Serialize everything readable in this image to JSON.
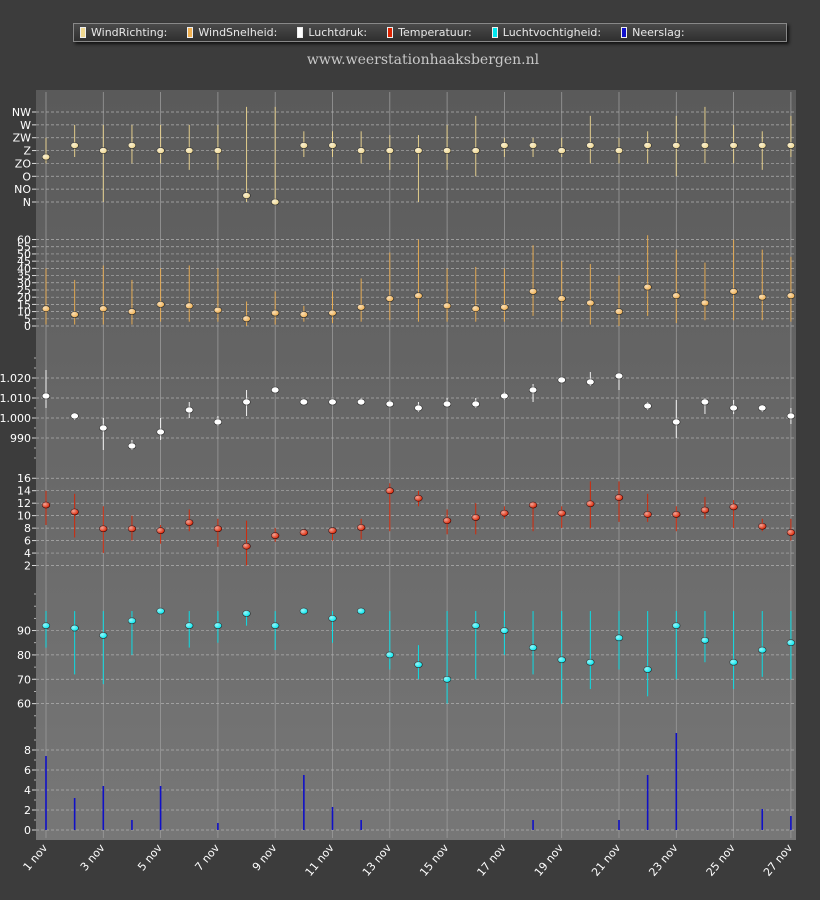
{
  "site_title": "www.weerstationhaaksbergen.nl",
  "legend": [
    {
      "label": "WindRichting:",
      "color": "#f0d890"
    },
    {
      "label": "WindSnelheid:",
      "color": "#f0b050"
    },
    {
      "label": "Luchtdruk:",
      "color": "#ffffff"
    },
    {
      "label": "Temperatuur:",
      "color": "#dd2200"
    },
    {
      "label": "Luchtvochtigheid:",
      "color": "#00e8f0"
    },
    {
      "label": "Neerslag:",
      "color": "#1010c8"
    }
  ],
  "x_ticks": [
    "1 nov",
    "3 nov",
    "5 nov",
    "7 nov",
    "9 nov",
    "11 nov",
    "13 nov",
    "15 nov",
    "17 nov",
    "19 nov",
    "21 nov",
    "23 nov",
    "25 nov",
    "27 nov"
  ],
  "chart_data": [
    {
      "type": "scatter",
      "title": "WindRichting",
      "color": "#f0d890",
      "categories": [
        "N",
        "NO",
        "O",
        "ZO",
        "Z",
        "ZW",
        "W",
        "NW"
      ],
      "x": [
        1,
        2,
        3,
        4,
        5,
        6,
        7,
        8,
        9,
        10,
        11,
        12,
        13,
        14,
        15,
        16,
        17,
        18,
        19,
        20,
        21,
        22,
        23,
        24,
        25,
        26,
        27
      ],
      "values": [
        3.5,
        4.4,
        4,
        4.4,
        4,
        4,
        4,
        0.5,
        0,
        4.4,
        4.4,
        4,
        4,
        4,
        4,
        4,
        4.4,
        4.4,
        4,
        4.4,
        4,
        4.4,
        4.4,
        4.4,
        4.4,
        4.4,
        4.4
      ],
      "min": [
        3,
        3.5,
        0,
        3,
        3,
        2.5,
        2.5,
        0,
        0,
        3.5,
        3.5,
        3,
        2.5,
        0,
        2.5,
        2,
        3.5,
        3.5,
        3.5,
        3,
        3,
        3,
        2,
        3,
        3,
        2.5,
        3.5
      ],
      "max": [
        5,
        6,
        6,
        6,
        6,
        6,
        6,
        7.4,
        7.4,
        5.5,
        5.5,
        5.5,
        5.2,
        5.2,
        6,
        6.7,
        5,
        5,
        5,
        6.7,
        5,
        5.5,
        6.7,
        7.4,
        6,
        5.5,
        6.7
      ]
    },
    {
      "type": "scatter",
      "title": "WindSnelheid",
      "color": "#f0b050",
      "ticks": [
        0,
        5,
        10,
        15,
        20,
        25,
        30,
        35,
        40,
        45,
        50,
        55,
        60
      ],
      "ylim": [
        0,
        68
      ],
      "x": [
        1,
        2,
        3,
        4,
        5,
        6,
        7,
        8,
        9,
        10,
        11,
        12,
        13,
        14,
        15,
        16,
        17,
        18,
        19,
        20,
        21,
        22,
        23,
        24,
        25,
        26,
        27
      ],
      "values": [
        12,
        8,
        12,
        10,
        15,
        14,
        11,
        5,
        9,
        8,
        9,
        13,
        19,
        21,
        14,
        12,
        13,
        24,
        19,
        16,
        10,
        27,
        21,
        16,
        24,
        20,
        21
      ],
      "min": [
        1,
        1,
        1,
        1,
        3,
        3,
        3,
        0,
        1,
        3,
        2,
        3,
        4,
        3,
        3,
        3,
        3,
        7,
        3,
        1,
        0,
        7,
        2,
        4,
        4,
        4,
        3
      ],
      "max": [
        40,
        32,
        42,
        32,
        40,
        42,
        40,
        17,
        24,
        14,
        24,
        33,
        51,
        60,
        40,
        41,
        40,
        56,
        45,
        43,
        35,
        63,
        53,
        44,
        60,
        53,
        48
      ]
    },
    {
      "type": "scatter",
      "title": "Luchtdruk",
      "color": "#ffffff",
      "ticks": [
        990,
        1000,
        1010,
        1020
      ],
      "minor_step": 5,
      "ylim": [
        980,
        1030
      ],
      "x": [
        1,
        2,
        3,
        4,
        5,
        6,
        7,
        8,
        9,
        10,
        11,
        12,
        13,
        14,
        15,
        16,
        17,
        18,
        19,
        20,
        21,
        22,
        23,
        24,
        25,
        26,
        27
      ],
      "values": [
        1011,
        1001,
        995,
        986,
        993,
        1004,
        998,
        1008,
        1014,
        1008,
        1008,
        1008,
        1007,
        1005,
        1007,
        1007,
        1011,
        1014,
        1019,
        1018,
        1021,
        1006,
        998,
        1008,
        1005,
        1005,
        1001
      ],
      "min": [
        1005,
        999,
        984,
        984,
        989,
        1000,
        996,
        1001,
        1014,
        1007,
        1007,
        1007,
        1006,
        1003,
        1006,
        1005,
        1009,
        1008,
        1018,
        1016,
        1014,
        1004,
        990,
        1002,
        1002,
        1003,
        997
      ],
      "max": [
        1024,
        1002,
        1000,
        989,
        1000,
        1008,
        1001,
        1014,
        1015,
        1009,
        1009,
        1010,
        1009,
        1008,
        1010,
        1010,
        1013,
        1017,
        1020,
        1023,
        1022,
        1008,
        1009,
        1010,
        1009,
        1006,
        1005
      ]
    },
    {
      "type": "scatter",
      "title": "Temperatuur",
      "color": "#dd2200",
      "ticks": [
        2,
        4,
        6,
        8,
        10,
        12,
        14,
        16
      ],
      "ylim": [
        0,
        17
      ],
      "x": [
        1,
        2,
        3,
        4,
        5,
        6,
        7,
        8,
        9,
        10,
        11,
        12,
        13,
        14,
        15,
        16,
        17,
        18,
        19,
        20,
        21,
        22,
        23,
        24,
        25,
        26,
        27
      ],
      "values": [
        11.7,
        10.6,
        7.9,
        7.9,
        7.6,
        8.9,
        7.9,
        5.1,
        6.8,
        7.3,
        7.6,
        8.1,
        14,
        12.8,
        9.2,
        9.7,
        10.4,
        11.7,
        10.4,
        11.9,
        12.9,
        10.2,
        10.2,
        10.9,
        11.4,
        8.3,
        7.3
      ],
      "min": [
        8.5,
        6.5,
        4,
        6,
        5.5,
        7.5,
        5,
        2,
        5.8,
        6.8,
        6,
        6.2,
        7.5,
        11.5,
        7,
        7,
        9.5,
        7.5,
        8,
        8,
        9,
        9,
        7.5,
        9.5,
        8,
        7.5,
        6
      ],
      "max": [
        14,
        13.5,
        11.5,
        10,
        8.5,
        11,
        9.5,
        9.2,
        8,
        7.8,
        8,
        9.5,
        15.2,
        14,
        11,
        12,
        11.5,
        12,
        11.5,
        15.5,
        15.5,
        13.5,
        11.5,
        13,
        12.5,
        9.5,
        9.5
      ]
    },
    {
      "type": "scatter",
      "title": "Luchtvochtigheid",
      "color": "#00e8f0",
      "ticks": [
        60,
        70,
        80,
        90
      ],
      "minor_step": 5,
      "ylim": [
        50,
        105
      ],
      "x": [
        1,
        2,
        3,
        4,
        5,
        6,
        7,
        8,
        9,
        10,
        11,
        12,
        13,
        14,
        15,
        16,
        17,
        18,
        19,
        20,
        21,
        22,
        23,
        24,
        25,
        26,
        27
      ],
      "values": [
        92,
        91,
        88,
        94,
        98,
        92,
        92,
        97,
        92,
        98,
        95,
        98,
        80,
        76,
        70,
        92,
        90,
        83,
        78,
        77,
        87,
        74,
        92,
        86,
        77,
        82,
        85
      ],
      "min": [
        83,
        72,
        68,
        80,
        97,
        83,
        85,
        92,
        82,
        97,
        85,
        97,
        74,
        70,
        60,
        70,
        80,
        72,
        60,
        66,
        74,
        63,
        70,
        77,
        66,
        71,
        70
      ],
      "max": [
        98,
        98,
        98,
        98,
        99,
        98,
        98,
        98,
        98,
        99,
        98,
        99,
        98,
        84,
        98,
        98,
        98,
        98,
        98,
        98,
        98,
        98,
        98,
        98,
        98,
        98,
        98
      ]
    },
    {
      "type": "bar",
      "title": "Neerslag",
      "color": "#1010c8",
      "ticks": [
        0,
        2,
        4,
        6,
        8
      ],
      "minor_step": 1,
      "ylim": [
        0,
        9.5
      ],
      "x": [
        1,
        2,
        3,
        4,
        5,
        6,
        7,
        8,
        9,
        10,
        11,
        12,
        13,
        14,
        15,
        16,
        17,
        18,
        19,
        20,
        21,
        22,
        23,
        24,
        25,
        26,
        27
      ],
      "values": [
        7.4,
        3.2,
        4.4,
        1,
        4.4,
        0,
        0.7,
        0,
        0,
        5.5,
        2.3,
        1,
        0,
        0,
        0,
        0,
        0,
        1,
        0,
        0,
        1,
        5.5,
        9.7,
        0,
        0,
        2.1,
        1.4
      ]
    }
  ]
}
